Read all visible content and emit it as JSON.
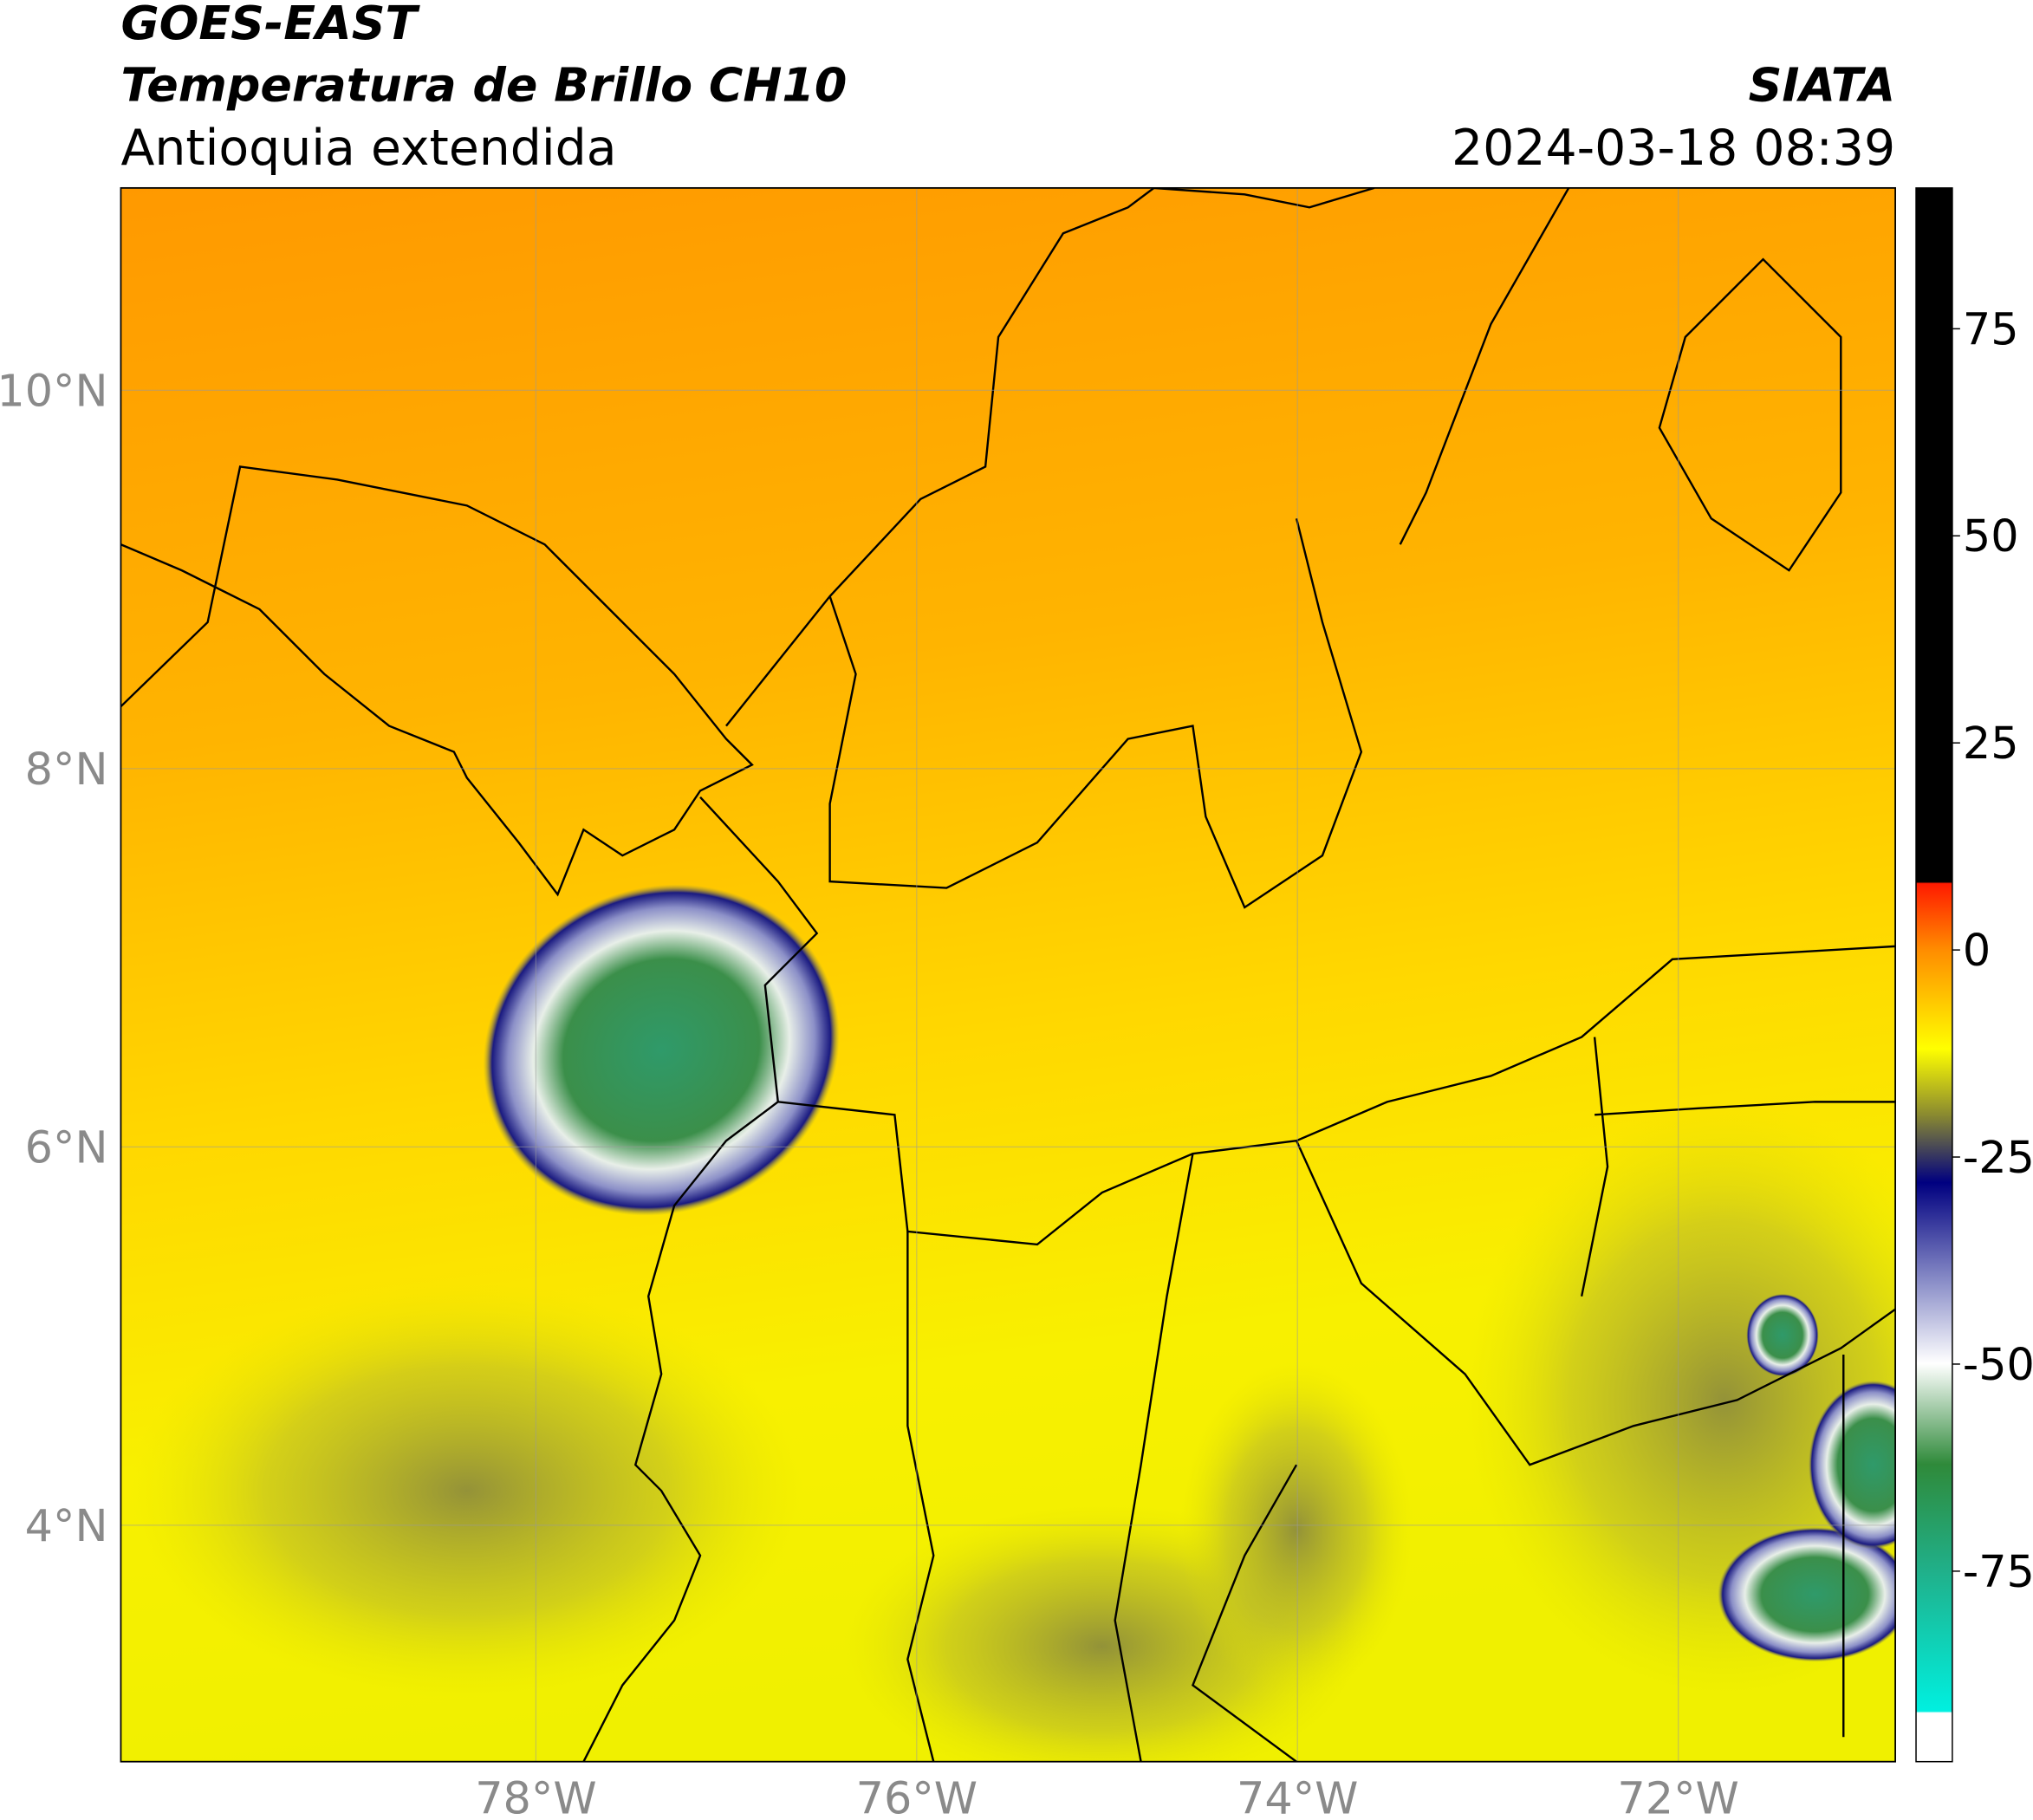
{
  "header": {
    "title": "GOES-EAST",
    "subtitle": "Temperatura de Brillo CH10",
    "region": "Antioquia extendida",
    "source": "SIATA",
    "datetime": "2024-03-18 08:39"
  },
  "map": {
    "lonlim": [
      -80.18,
      -70.86
    ],
    "latlim": [
      2.75,
      11.07
    ],
    "grid": true,
    "lon_ticks": [
      {
        "value": -78,
        "label": "78°W"
      },
      {
        "value": -76,
        "label": "76°W"
      },
      {
        "value": -74,
        "label": "74°W"
      },
      {
        "value": -72,
        "label": "72°W"
      }
    ],
    "lat_ticks": [
      {
        "value": 4,
        "label": "4°N"
      },
      {
        "value": 6,
        "label": "6°N"
      },
      {
        "value": 8,
        "label": "8°N"
      },
      {
        "value": 10,
        "label": "10°N"
      }
    ]
  },
  "colorbar": {
    "lim": [
      -98,
      92
    ],
    "ticks": [
      -75,
      -50,
      -25,
      0,
      25,
      50,
      75
    ]
  }
}
